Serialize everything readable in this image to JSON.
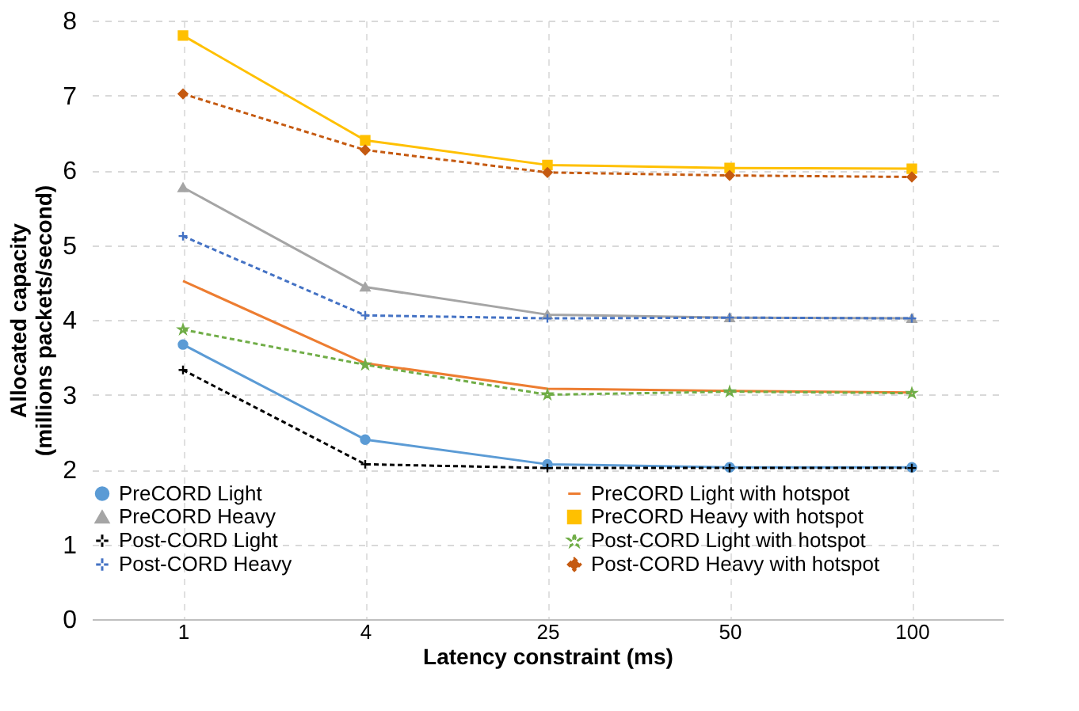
{
  "chart_data": {
    "type": "line",
    "xlabel": "Latency constraint (ms)",
    "ylabel": "Allocated capacity\n(millions packets/second)",
    "categories": [
      "1",
      "4",
      "25",
      "50",
      "100"
    ],
    "ylim": [
      0,
      8
    ],
    "yticks": [
      0,
      1,
      2,
      3,
      4,
      5,
      6,
      7,
      8
    ],
    "grid": true,
    "legend": "bottom",
    "series": [
      {
        "name": "PreCORD Light",
        "color": "#5b9bd5",
        "marker": "circle",
        "line_style": "solid",
        "values": [
          3.67,
          2.4,
          2.07,
          2.03,
          2.03
        ]
      },
      {
        "name": "PreCORD Heavy",
        "color": "#a5a5a5",
        "marker": "triangle",
        "line_style": "solid",
        "values": [
          5.77,
          4.44,
          4.07,
          4.03,
          4.02
        ]
      },
      {
        "name": "Post-CORD Light",
        "color": "#000000",
        "marker": "cross",
        "line_style": "dashed",
        "values": [
          3.33,
          2.07,
          2.02,
          2.02,
          2.02
        ]
      },
      {
        "name": "Post-CORD Heavy",
        "color": "#4472c4",
        "marker": "cross",
        "line_style": "dashed",
        "values": [
          5.12,
          4.06,
          4.02,
          4.03,
          4.02
        ]
      },
      {
        "name": "PreCORD Light with hotspot",
        "color": "#ed7d31",
        "marker": "none",
        "line_style": "solid",
        "values": [
          4.52,
          3.42,
          3.08,
          3.05,
          3.03
        ]
      },
      {
        "name": "PreCORD Heavy with hotspot",
        "color": "#ffc000",
        "marker": "square",
        "line_style": "solid",
        "values": [
          7.8,
          6.4,
          6.07,
          6.03,
          6.02
        ]
      },
      {
        "name": "Post-CORD Light with hotspot",
        "color": "#70ad47",
        "marker": "star",
        "line_style": "dashed",
        "values": [
          3.87,
          3.4,
          3.0,
          3.04,
          3.02
        ]
      },
      {
        "name": "Post-CORD Heavy with hotspot",
        "color": "#c55a11",
        "marker": "diamond",
        "line_style": "dashed",
        "values": [
          7.02,
          6.27,
          5.97,
          5.93,
          5.91
        ]
      }
    ]
  }
}
